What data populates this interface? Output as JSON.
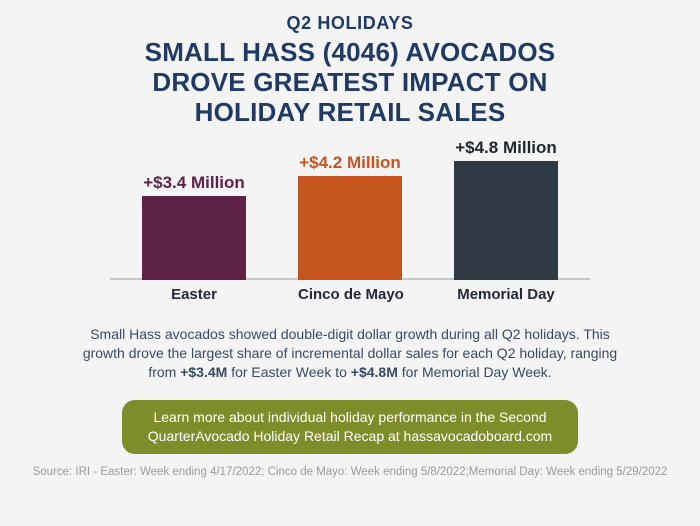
{
  "header": {
    "eyebrow": "Q2 HOLIDAYS",
    "title_lines": [
      "SMALL HASS (4046) AVOCADOS",
      "DROVE GREATEST IMPACT ON",
      "HOLIDAY RETAIL SALES"
    ]
  },
  "chart_data": {
    "type": "bar",
    "categories": [
      "Easter",
      "Cinco de Mayo",
      "Memorial Day"
    ],
    "values": [
      3.4,
      4.2,
      4.8
    ],
    "value_labels": [
      "+$3.4 Million",
      "+$4.2 Million",
      "+$4.8 Million"
    ],
    "bar_colors": [
      "#5f2247",
      "#c6541e",
      "#2f3a45"
    ],
    "value_label_colors": [
      "#5f2247",
      "#c6541e",
      "#1f262e"
    ],
    "title": "",
    "xlabel": "",
    "ylabel": "",
    "ylim": [
      0,
      5
    ],
    "grid": false,
    "legend": false
  },
  "summary": {
    "segments": [
      {
        "text": "Small Hass avocados showed double-digit dollar growth during all Q2 holidays. This growth drove the largest share of incremental dollar sales for each Q2 holiday, ranging from ",
        "bold": false
      },
      {
        "text": "+$3.4M",
        "bold": true
      },
      {
        "text": " for Easter Week to ",
        "bold": false
      },
      {
        "text": "+$4.8M",
        "bold": true
      },
      {
        "text": " for Memorial Day Week.",
        "bold": false
      }
    ]
  },
  "banner": {
    "lines": [
      "Learn more about individual holiday performance in the Second Quarter",
      "Avocado Holiday Retail Recap at hassavocadoboard.com"
    ],
    "background": "#7e8d2a",
    "text_color": "#ffffff"
  },
  "source": {
    "lines": [
      "Source: IRI - Easter: Week ending 4/17/2022; Cinco de Mayo: Week ending 5/8/2022;",
      "Memorial Day: Week ending 5/29/2022"
    ]
  },
  "colors": {
    "background": "#f5f4f5",
    "heading": "#1f3a64",
    "body_text": "#374a64",
    "category_label": "#23293a",
    "axis_line": "#c8c8c8",
    "source_text": "#9a9a9a"
  }
}
